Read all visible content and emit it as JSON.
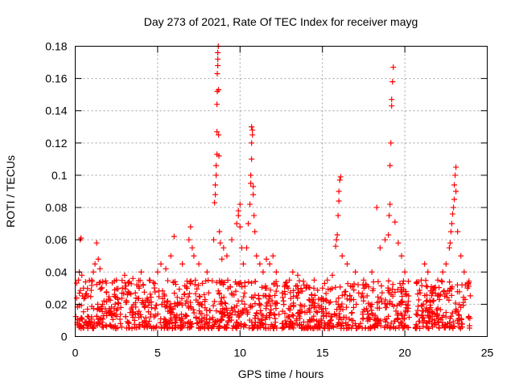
{
  "chart_data": {
    "type": "scatter",
    "title": "Day 273 of 2021, Rate Of TEC Index for receiver mayg",
    "xlabel": "GPS time / hours",
    "ylabel": "ROTI / TECUs",
    "xlim": [
      0,
      25
    ],
    "ylim": [
      0,
      0.18
    ],
    "xticks": [
      0,
      5,
      10,
      15,
      20,
      25
    ],
    "xtick_labels": [
      "0",
      "5",
      "10",
      "15",
      "20",
      "25"
    ],
    "yticks": [
      0,
      0.02,
      0.04,
      0.06,
      0.08,
      0.1,
      0.12,
      0.14,
      0.16,
      0.18
    ],
    "ytick_labels": [
      "0",
      "0.02",
      "0.04",
      "0.06",
      "0.08",
      "0.1",
      "0.12",
      "0.14",
      "0.16",
      "0.18"
    ],
    "grid": true,
    "marker": "plus",
    "color": "#ff0000",
    "baseline": {
      "segments": [
        [
          0.0,
          8.4
        ],
        [
          8.4,
          12.4
        ],
        [
          12.5,
          20.3
        ],
        [
          20.6,
          24.0
        ]
      ],
      "y_range": [
        0.005,
        0.035
      ],
      "points_per_hour": 55
    },
    "series": [
      {
        "name": "ROTI",
        "x": [
          0.2,
          0.25,
          0.3,
          0.35,
          0.4,
          0.5,
          1.0,
          1.1,
          1.2,
          1.3,
          1.4,
          1.5,
          1.6,
          2.5,
          3.0,
          3.5,
          4.0,
          4.5,
          5.0,
          5.2,
          5.5,
          5.8,
          6.0,
          6.5,
          6.9,
          7.0,
          7.1,
          7.2,
          7.5,
          8.0,
          8.4,
          8.45,
          8.5,
          8.5,
          8.55,
          8.55,
          8.6,
          8.6,
          8.6,
          8.62,
          8.62,
          8.65,
          8.65,
          8.65,
          8.68,
          8.7,
          8.7,
          8.72,
          8.75,
          8.8,
          8.9,
          9.0,
          9.2,
          9.5,
          9.8,
          9.9,
          9.9,
          10.0,
          10.0,
          10.1,
          10.2,
          10.4,
          10.5,
          10.6,
          10.65,
          10.65,
          10.7,
          10.7,
          10.7,
          10.75,
          10.75,
          10.8,
          10.8,
          10.85,
          10.9,
          11.0,
          11.2,
          11.4,
          11.6,
          11.8,
          12.0,
          12.2,
          13.0,
          13.2,
          13.5,
          14.0,
          14.5,
          15.0,
          15.3,
          15.6,
          15.8,
          15.85,
          15.9,
          15.95,
          16.0,
          16.0,
          16.05,
          16.1,
          16.2,
          16.5,
          17.0,
          17.5,
          18.0,
          18.3,
          18.5,
          18.8,
          19.0,
          19.05,
          19.1,
          19.1,
          19.15,
          19.2,
          19.2,
          19.25,
          19.3,
          19.4,
          19.6,
          19.8,
          20.0,
          21.0,
          21.2,
          21.4,
          21.7,
          22.0,
          22.3,
          22.5,
          22.7,
          22.75,
          22.8,
          22.85,
          22.9,
          22.95,
          23.0,
          23.0,
          23.05,
          23.1,
          23.1,
          23.2,
          23.4,
          23.6,
          23.8
        ],
        "y": [
          0.035,
          0.04,
          0.06,
          0.061,
          0.038,
          0.03,
          0.035,
          0.04,
          0.045,
          0.058,
          0.048,
          0.042,
          0.03,
          0.035,
          0.038,
          0.036,
          0.04,
          0.035,
          0.04,
          0.045,
          0.042,
          0.05,
          0.062,
          0.045,
          0.06,
          0.068,
          0.055,
          0.05,
          0.045,
          0.04,
          0.06,
          0.083,
          0.088,
          0.094,
          0.1,
          0.106,
          0.113,
          0.127,
          0.144,
          0.152,
          0.163,
          0.168,
          0.172,
          0.176,
          0.18,
          0.153,
          0.125,
          0.112,
          0.065,
          0.058,
          0.048,
          0.055,
          0.05,
          0.06,
          0.07,
          0.075,
          0.078,
          0.082,
          0.068,
          0.055,
          0.045,
          0.055,
          0.07,
          0.082,
          0.095,
          0.1,
          0.11,
          0.12,
          0.13,
          0.128,
          0.125,
          0.093,
          0.088,
          0.075,
          0.065,
          0.05,
          0.045,
          0.04,
          0.048,
          0.045,
          0.05,
          0.04,
          0.035,
          0.04,
          0.038,
          0.03,
          0.035,
          0.03,
          0.035,
          0.038,
          0.056,
          0.06,
          0.063,
          0.075,
          0.084,
          0.09,
          0.097,
          0.099,
          0.05,
          0.045,
          0.04,
          0.035,
          0.04,
          0.08,
          0.055,
          0.06,
          0.063,
          0.075,
          0.082,
          0.106,
          0.12,
          0.143,
          0.147,
          0.158,
          0.167,
          0.071,
          0.058,
          0.05,
          0.04,
          0.035,
          0.045,
          0.04,
          0.03,
          0.035,
          0.04,
          0.045,
          0.055,
          0.058,
          0.065,
          0.07,
          0.076,
          0.08,
          0.085,
          0.094,
          0.1,
          0.105,
          0.09,
          0.065,
          0.05,
          0.04,
          0.03
        ]
      }
    ]
  }
}
